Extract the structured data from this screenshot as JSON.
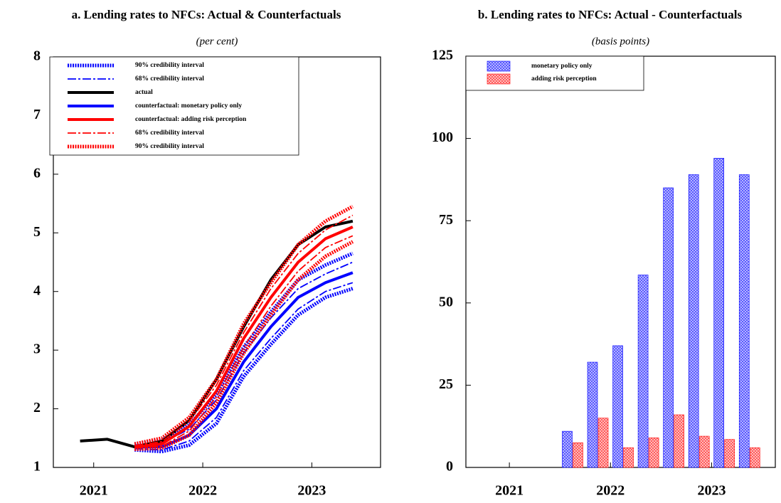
{
  "chart_data": [
    {
      "type": "line",
      "title": "a. Lending rates to NFCs: Actual & Counterfactuals",
      "subtitle": "(per cent)",
      "x": [
        2021.375,
        2021.625,
        2021.875,
        2022.125,
        2022.375,
        2022.625,
        2022.875,
        2023.125,
        2023.375,
        2023.625,
        2023.875
      ],
      "xlim": [
        2021.13,
        2024.13
      ],
      "xticks": [
        {
          "value": 2021.5,
          "label": "2021"
        },
        {
          "value": 2022.5,
          "label": "2022"
        },
        {
          "value": 2023.5,
          "label": "2023"
        }
      ],
      "ylim": [
        1,
        8
      ],
      "yticks": [
        1,
        2,
        3,
        4,
        5,
        6,
        7,
        8
      ],
      "legend": "upper-left",
      "series": [
        {
          "name": "90% credibility interval",
          "color": "#0000ff",
          "style": "dotted",
          "lower": [
            null,
            null,
            1.3,
            1.27,
            1.38,
            1.75,
            2.55,
            3.1,
            3.6,
            3.9,
            4.05
          ],
          "upper": [
            null,
            null,
            1.4,
            1.47,
            1.72,
            2.25,
            3.05,
            3.65,
            4.2,
            4.45,
            4.65
          ]
        },
        {
          "name": "68% credibility interval",
          "color": "#0000ff",
          "style": "dashdot",
          "lower": [
            null,
            null,
            1.32,
            1.3,
            1.45,
            1.85,
            2.65,
            3.2,
            3.7,
            4.0,
            4.15
          ],
          "upper": [
            null,
            null,
            1.38,
            1.42,
            1.65,
            2.15,
            2.95,
            3.55,
            4.05,
            4.3,
            4.5
          ]
        },
        {
          "name": "actual",
          "color": "#000000",
          "style": "solid",
          "values": [
            1.45,
            1.48,
            1.35,
            1.45,
            1.8,
            2.5,
            3.4,
            4.2,
            4.8,
            5.1,
            5.2
          ]
        },
        {
          "name": "counterfactual: monetary policy only",
          "color": "#0000ff",
          "style": "solid",
          "values": [
            null,
            null,
            1.35,
            1.35,
            1.55,
            2.0,
            2.8,
            3.4,
            3.9,
            4.15,
            4.32
          ]
        },
        {
          "name": "counterfactual: adding risk perception",
          "color": "#ff0000",
          "style": "solid",
          "values": [
            null,
            null,
            1.35,
            1.4,
            1.7,
            2.3,
            3.2,
            3.9,
            4.5,
            4.9,
            5.1
          ]
        },
        {
          "name": "68% credibility interval",
          "color": "#ff0000",
          "style": "dashdot",
          "lower": [
            null,
            null,
            1.33,
            1.36,
            1.62,
            2.2,
            3.05,
            3.75,
            4.35,
            4.75,
            4.95
          ],
          "upper": [
            null,
            null,
            1.37,
            1.44,
            1.78,
            2.4,
            3.3,
            4.05,
            4.65,
            5.05,
            5.3
          ]
        },
        {
          "name": "90% credibility interval",
          "color": "#ff0000",
          "style": "dotted",
          "lower": [
            null,
            null,
            1.31,
            1.33,
            1.55,
            2.1,
            2.95,
            3.6,
            4.2,
            4.6,
            4.85
          ],
          "upper": [
            null,
            null,
            1.4,
            1.5,
            1.85,
            2.5,
            3.45,
            4.15,
            4.8,
            5.2,
            5.45
          ]
        }
      ]
    },
    {
      "type": "bar",
      "title": "b. Lending rates to NFCs: Actual - Counterfactuals",
      "subtitle": "(basis points)",
      "x": [
        2022.125,
        2022.375,
        2022.625,
        2022.875,
        2023.125,
        2023.375,
        2023.625,
        2023.875
      ],
      "xlim": [
        2021.07,
        2024.13
      ],
      "xticks": [
        {
          "value": 2021.5,
          "label": "2021"
        },
        {
          "value": 2022.5,
          "label": "2022"
        },
        {
          "value": 2023.5,
          "label": "2023"
        }
      ],
      "ylim": [
        0,
        125
      ],
      "yticks": [
        0,
        25,
        50,
        75,
        100,
        125
      ],
      "legend": "upper-left",
      "series": [
        {
          "name": "monetary policy only",
          "color": "#0000ff",
          "values": [
            11,
            32,
            37,
            58.5,
            85,
            89,
            94,
            89
          ]
        },
        {
          "name": "adding risk perception",
          "color": "#ff0000",
          "values": [
            7.5,
            15,
            6,
            9,
            16,
            9.5,
            8.5,
            6
          ]
        }
      ]
    }
  ]
}
